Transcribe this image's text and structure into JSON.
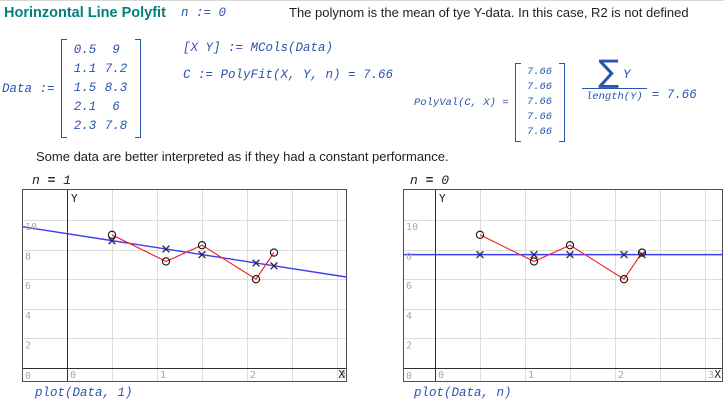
{
  "colors": {
    "math_blue": "#2a54ad",
    "title_teal": "#00807e",
    "text_dark": "#1f1f1f",
    "fit_blue": "#3c3cf2",
    "data_red": "#ef2c2c",
    "marker_dark": "#26264f",
    "marker_circle": "#141414",
    "grid": "#dcdcdc",
    "tick": "#a9a9a9",
    "axis": "#2e2e2e",
    "border": "#4f4f4f"
  },
  "header": {
    "title": "Horinzontal Line Polyfit",
    "n_definition": "n := 0",
    "comment": "The polynom is the mean of tye Y-data. In this case, R2 is not defined"
  },
  "definitions": {
    "data_label": "Data :=",
    "data_matrix": [
      [
        "0.5",
        "9"
      ],
      [
        "1.1",
        "7.2"
      ],
      [
        "1.5",
        "8.3"
      ],
      [
        "2.1",
        "6"
      ],
      [
        "2.3",
        "7.8"
      ]
    ],
    "mcols_expr": "[X Y] := MCols(Data)",
    "polyfit_expr": "C := PolyFit(X, Y, n) = 7.66",
    "polyval_label": "PolyVal(C, X) =",
    "polyval_matrix": [
      "7.66",
      "7.66",
      "7.66",
      "7.66",
      "7.66"
    ],
    "sum_symbol": "∑",
    "sum_numerator_var": "Y",
    "sum_denominator": "length(Y)",
    "sum_result": "= 7.66"
  },
  "note": "Some data are better interpreted as if they had a constant performance.",
  "chart_data": [
    {
      "type": "scatter",
      "variant": {
        "lhs": "n ",
        "eq": "=",
        "rhs": " 1"
      },
      "caption": "plot(Data, 1)",
      "xlabel": "X",
      "ylabel": "Y",
      "xticks": [
        0,
        1,
        2,
        3
      ],
      "yticks": [
        0,
        2,
        4,
        6,
        8,
        10
      ],
      "xgrid_step": 0.5,
      "xgrid_max": 3,
      "xlim": [
        -0.5,
        3.11
      ],
      "ylim": [
        -0.9,
        12.1
      ],
      "grid": true,
      "data_series": {
        "name": "Data",
        "x": [
          0.5,
          1.1,
          1.5,
          2.1,
          2.3
        ],
        "y": [
          9,
          7.2,
          8.3,
          6,
          7.8
        ]
      },
      "fitted_markers": {
        "name": "PolyFit degree-1 fitted values",
        "x": [
          0.5,
          1.1,
          1.5,
          2.1,
          2.3
        ],
        "y": [
          8.6,
          8.04,
          7.66,
          7.09,
          6.9
        ]
      },
      "fit_line": {
        "x1": -0.5,
        "y1": 9.55,
        "x2": 3.11,
        "y2": 6.14
      }
    },
    {
      "type": "scatter",
      "variant": {
        "lhs": "n ",
        "eq": "=",
        "rhs": " 0"
      },
      "caption": "plot(Data, n)",
      "xlabel": "X",
      "ylabel": "Y",
      "xticks": [
        0,
        1,
        2,
        3
      ],
      "yticks": [
        0,
        2,
        4,
        6,
        8,
        10
      ],
      "xgrid_step": 0.5,
      "xgrid_max": 3,
      "xlim": [
        -0.36,
        3.2
      ],
      "ylim": [
        -0.9,
        12.1
      ],
      "grid": true,
      "data_series": {
        "name": "Data",
        "x": [
          0.5,
          1.1,
          1.5,
          2.1,
          2.3
        ],
        "y": [
          9,
          7.2,
          8.3,
          6,
          7.8
        ]
      },
      "fitted_markers": {
        "name": "PolyFit degree-0 fitted values",
        "x": [
          0.5,
          1.1,
          1.5,
          2.1,
          2.3
        ],
        "y": [
          7.66,
          7.66,
          7.66,
          7.66,
          7.66
        ]
      },
      "fit_line": {
        "x1": -0.36,
        "y1": 7.66,
        "x2": 3.2,
        "y2": 7.66
      }
    }
  ]
}
